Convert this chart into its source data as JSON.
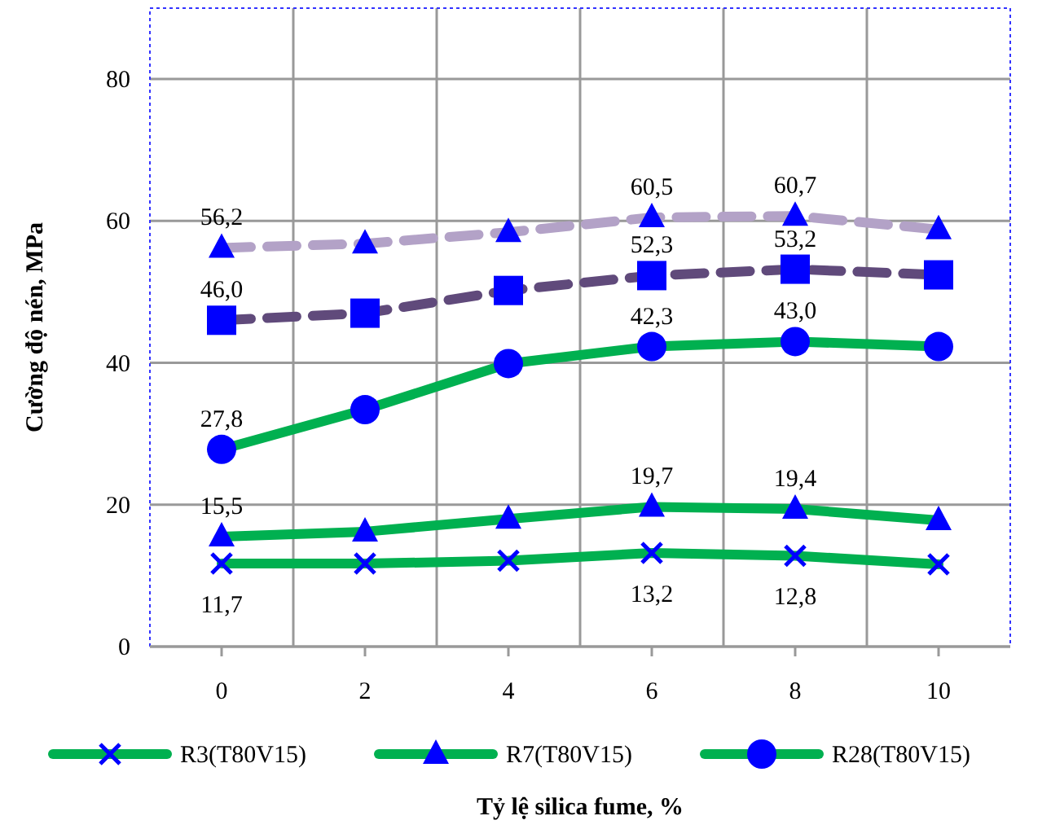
{
  "chart_data": {
    "type": "line",
    "xlabel": "Tỷ lệ silica fume, %",
    "ylabel": "Cường độ nén, MPa",
    "categories": [
      "0",
      "2",
      "4",
      "6",
      "8",
      "10"
    ],
    "ylim": [
      0,
      90
    ],
    "yticks": [
      0,
      20,
      40,
      60,
      80
    ],
    "grid": true,
    "legend": "bottom",
    "series": [
      {
        "name": "R3(T80V15)",
        "color": "#00b050",
        "marker": "cross",
        "line_style": "solid",
        "values": [
          11.7,
          11.7,
          12.1,
          13.2,
          12.8,
          11.6
        ],
        "value_labels": [
          "11,7",
          null,
          null,
          "13,2",
          "12,8",
          null
        ]
      },
      {
        "name": "R7(T80V15)",
        "color": "#00b050",
        "marker": "triangle",
        "line_style": "solid",
        "values": [
          15.5,
          16.2,
          18.0,
          19.7,
          19.4,
          17.8
        ],
        "value_labels": [
          "15,5",
          null,
          null,
          "19,7",
          "19,4",
          null
        ]
      },
      {
        "name": "R28(T80V15)",
        "color": "#00b050",
        "marker": "circle",
        "line_style": "solid",
        "values": [
          27.8,
          33.4,
          39.9,
          42.3,
          43.0,
          42.3
        ],
        "value_labels": [
          "27,8",
          null,
          null,
          "42,3",
          "43,0",
          null
        ]
      },
      {
        "color": "#604a7b",
        "marker": "square",
        "line_style": "dashed",
        "values": [
          46.0,
          47.0,
          50.2,
          52.3,
          53.2,
          52.4
        ],
        "value_labels": [
          "46,0",
          null,
          null,
          "52,3",
          "53,2",
          null
        ]
      },
      {
        "color": "#b3a2c7",
        "marker": "triangle",
        "line_style": "dashed",
        "values": [
          56.2,
          56.8,
          58.4,
          60.5,
          60.7,
          58.8
        ],
        "value_labels": [
          "56,2",
          null,
          null,
          "60,5",
          "60,7",
          null
        ]
      }
    ]
  }
}
